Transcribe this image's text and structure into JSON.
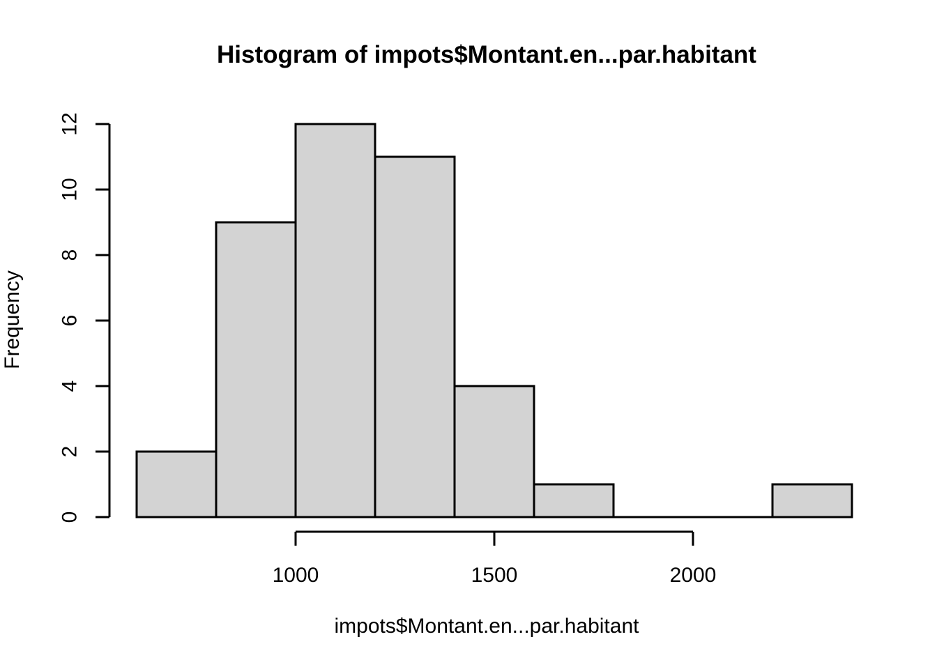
{
  "chart_data": {
    "type": "bar",
    "chart_kind": "histogram",
    "title": "Histogram of impots$Montant.en...par.habitant",
    "xlabel": "impots$Montant.en...par.habitant",
    "ylabel": "Frequency",
    "bin_breaks": [
      600,
      800,
      1000,
      1200,
      1400,
      1600,
      1800,
      2000,
      2200,
      2400
    ],
    "counts": [
      2,
      9,
      12,
      11,
      4,
      1,
      0,
      0,
      1
    ],
    "x_tick_values": [
      1000,
      1500,
      2000
    ],
    "x_tick_labels": [
      "1000",
      "1500",
      "2000"
    ],
    "y_tick_values": [
      0,
      2,
      4,
      6,
      8,
      10,
      12
    ],
    "y_tick_labels": [
      "0",
      "2",
      "4",
      "6",
      "8",
      "10",
      "12"
    ],
    "xlim": [
      600,
      2400
    ],
    "ylim": [
      0,
      12
    ],
    "grid": "off",
    "legend": "none",
    "colors": {
      "bar_fill": "#d3d3d3",
      "bar_stroke": "#000000",
      "axis": "#000000",
      "text": "#000000",
      "background": "#ffffff"
    }
  }
}
